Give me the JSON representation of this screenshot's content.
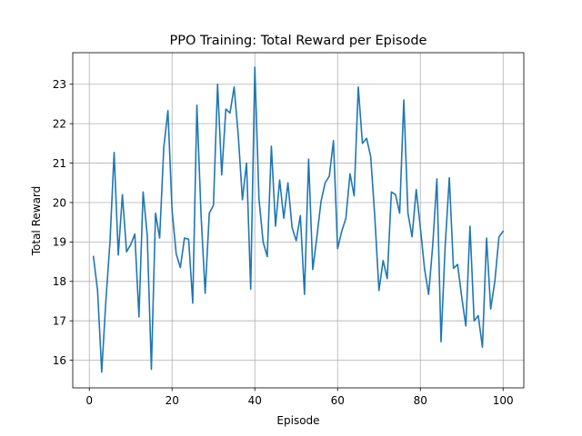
{
  "chart_data": {
    "type": "line",
    "title": "PPO Training: Total Reward per Episode",
    "xlabel": "Episode",
    "ylabel": "Total Reward",
    "xlim": [
      -4,
      105
    ],
    "ylim": [
      15.3,
      23.8
    ],
    "xticks": [
      0,
      20,
      40,
      60,
      80,
      100
    ],
    "yticks": [
      16,
      17,
      18,
      19,
      20,
      21,
      22,
      23
    ],
    "grid": true,
    "line_color": "#1f77b4",
    "series": [
      {
        "x": [
          1,
          2,
          3,
          4,
          5,
          6,
          7,
          8,
          9,
          10,
          11,
          12,
          13,
          14,
          15,
          16,
          17,
          18,
          19,
          20,
          21,
          22,
          23,
          24,
          25,
          26,
          27,
          28,
          29,
          30,
          31,
          32,
          33,
          34,
          35,
          36,
          37,
          38,
          39,
          40,
          41,
          42,
          43,
          44,
          45,
          46,
          47,
          48,
          49,
          50,
          51,
          52,
          53,
          54,
          55,
          56,
          57,
          58,
          59,
          60,
          61,
          62,
          63,
          64,
          65,
          66,
          67,
          68,
          69,
          70,
          71,
          72,
          73,
          74,
          75,
          76,
          77,
          78,
          79,
          80,
          81,
          82,
          83,
          84,
          85,
          86,
          87,
          88,
          89,
          90,
          91,
          92,
          93,
          94,
          95,
          96,
          97,
          98,
          99,
          100
        ],
        "values": [
          18.63,
          17.77,
          15.7,
          17.5,
          19.0,
          21.27,
          18.67,
          20.2,
          18.75,
          18.93,
          19.2,
          17.1,
          20.27,
          19.17,
          15.77,
          19.73,
          19.1,
          21.4,
          22.33,
          19.8,
          18.7,
          18.35,
          19.1,
          19.07,
          17.45,
          22.47,
          19.7,
          17.7,
          19.73,
          19.93,
          23.0,
          20.7,
          22.37,
          22.27,
          22.93,
          21.7,
          20.07,
          21.0,
          17.8,
          23.43,
          20.1,
          19.0,
          18.63,
          21.43,
          19.4,
          20.57,
          19.6,
          20.5,
          19.37,
          19.03,
          19.67,
          17.67,
          21.1,
          18.3,
          19.13,
          20.03,
          20.5,
          20.67,
          21.57,
          18.83,
          19.27,
          19.6,
          20.73,
          20.17,
          22.93,
          21.5,
          21.63,
          21.17,
          19.63,
          17.77,
          18.53,
          18.07,
          20.27,
          20.2,
          19.73,
          22.6,
          19.73,
          19.13,
          20.33,
          19.37,
          18.33,
          17.67,
          18.93,
          20.6,
          16.47,
          18.9,
          20.63,
          18.33,
          18.43,
          17.6,
          16.87,
          19.4,
          17.0,
          17.13,
          16.33,
          19.1,
          17.3,
          18.0,
          19.13,
          19.27
        ]
      }
    ]
  }
}
